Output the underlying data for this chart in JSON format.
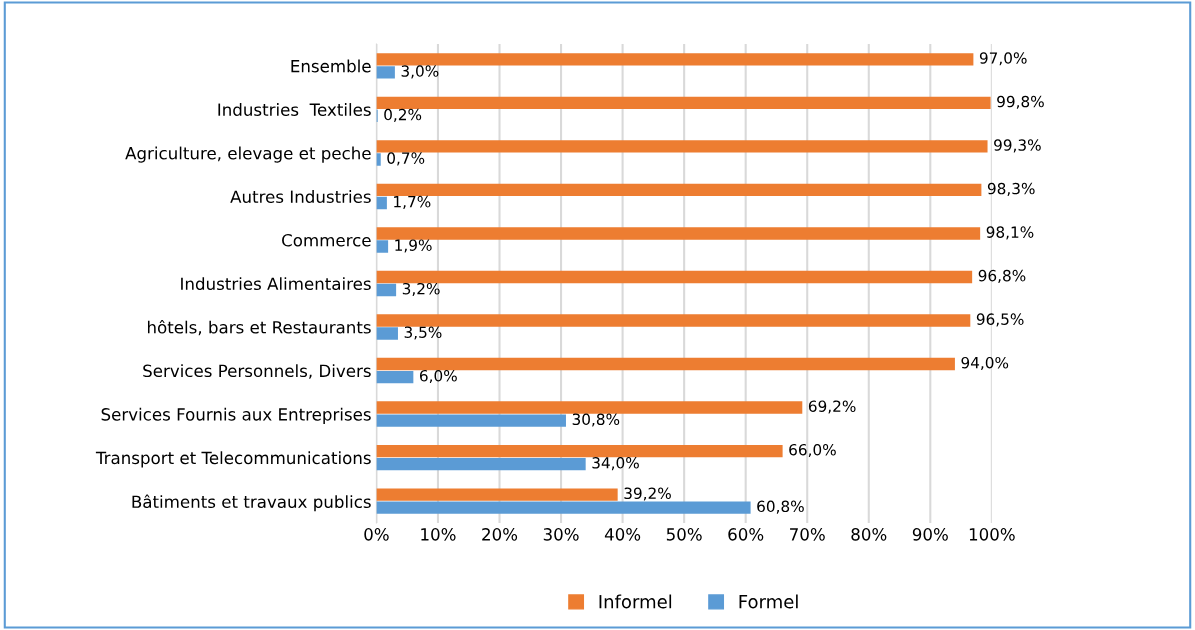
{
  "chart_data": {
    "type": "bar",
    "orientation": "horizontal",
    "categories": [
      "Ensemble",
      "Industries  Textiles",
      "Agriculture, elevage et peche",
      "Autres Industries",
      "Commerce",
      "Industries Alimentaires",
      "hôtels, bars et Restaurants",
      "Services Personnels, Divers",
      "Services Fournis aux Entreprises",
      "Transport et Telecommunications",
      "Bâtiments et travaux publics"
    ],
    "series": [
      {
        "name": "Informel",
        "color": "#ed7d31",
        "values": [
          97.0,
          99.8,
          99.3,
          98.3,
          98.1,
          96.8,
          96.5,
          94.0,
          69.2,
          66.0,
          39.2
        ],
        "value_labels": [
          "97,0%",
          "99,8%",
          "99,3%",
          "98,3%",
          "98,1%",
          "96,8%",
          "96,5%",
          "94,0%",
          "69,2%",
          "66,0%",
          "39,2%"
        ]
      },
      {
        "name": "Formel",
        "color": "#5b9bd5",
        "values": [
          3.0,
          0.2,
          0.7,
          1.7,
          1.9,
          3.2,
          3.5,
          6.0,
          30.8,
          34.0,
          60.8
        ],
        "value_labels": [
          "3,0%",
          "0,2%",
          "0,7%",
          "1,7%",
          "1,9%",
          "3,2%",
          "3,5%",
          "6,0%",
          "30,8%",
          "34,0%",
          "60,8%"
        ]
      }
    ],
    "xlim": [
      0,
      100
    ],
    "xticks": [
      {
        "value": 0,
        "label": "0%"
      },
      {
        "value": 10,
        "label": "10%"
      },
      {
        "value": 20,
        "label": "20%"
      },
      {
        "value": 30,
        "label": "30%"
      },
      {
        "value": 40,
        "label": "40%"
      },
      {
        "value": 50,
        "label": "50%"
      },
      {
        "value": 60,
        "label": "60%"
      },
      {
        "value": 70,
        "label": "70%"
      },
      {
        "value": 80,
        "label": "80%"
      },
      {
        "value": 90,
        "label": "90%"
      },
      {
        "value": 100,
        "label": "100%"
      }
    ],
    "grid": "x",
    "legend": "bottom"
  }
}
